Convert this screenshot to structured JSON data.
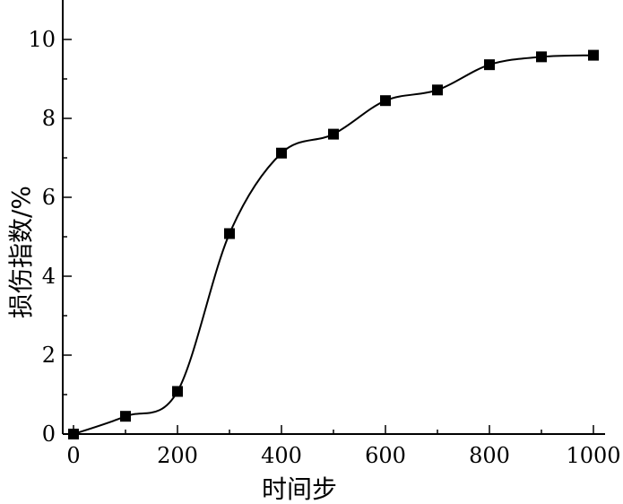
{
  "chart_data": {
    "type": "line",
    "xlabel": "时间步",
    "ylabel": "损伤指数/%",
    "xlim": [
      0,
      1000
    ],
    "ylim": [
      0,
      10
    ],
    "x_ticks": [
      0,
      200,
      400,
      600,
      800,
      1000
    ],
    "y_ticks": [
      0,
      2,
      4,
      6,
      8,
      10
    ],
    "x_tick_labels": [
      "0",
      "200",
      "400",
      "600",
      "800",
      "1000"
    ],
    "y_tick_labels": [
      "0",
      "2",
      "4",
      "6",
      "8",
      "10"
    ],
    "grid": false,
    "marker": "square",
    "series_color": "#000000",
    "series": [
      {
        "x": [
          0,
          100,
          200,
          300,
          400,
          500,
          600,
          700,
          800,
          900,
          1000
        ],
        "values": [
          0.0,
          0.45,
          1.08,
          5.08,
          7.12,
          7.6,
          8.45,
          8.72,
          9.36,
          9.56,
          9.6
        ]
      }
    ]
  }
}
